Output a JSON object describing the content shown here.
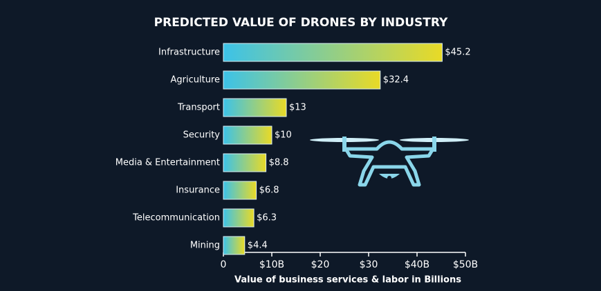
{
  "chart_data": {
    "type": "barh",
    "title": "PREDICTED VALUE OF DRONES BY INDUSTRY",
    "categories": [
      "Infrastructure",
      "Agriculture",
      "Transport",
      "Security",
      "Media & Entertainment",
      "Insurance",
      "Telecommunication",
      "Mining"
    ],
    "values": [
      45.2,
      32.4,
      13,
      10,
      8.8,
      6.8,
      6.3,
      4.4
    ],
    "value_labels": [
      "$45.2",
      "$32.4",
      "$13",
      "$10",
      "$8.8",
      "$6.8",
      "$6.3",
      "$4.4"
    ],
    "xlabel": "Value of business services & labor in Billions",
    "xlim": [
      0,
      50
    ],
    "xticks": [
      0,
      {
        "value": 10,
        "label": "$10B"
      },
      {
        "value": 20,
        "label": "$20"
      },
      {
        "value": 30,
        "label": "$30"
      },
      {
        "value": 40,
        "label": "$40B"
      },
      {
        "value": 50,
        "label": "$50B"
      }
    ],
    "gradient": [
      "#3cc2e8",
      "#e9da26"
    ]
  }
}
